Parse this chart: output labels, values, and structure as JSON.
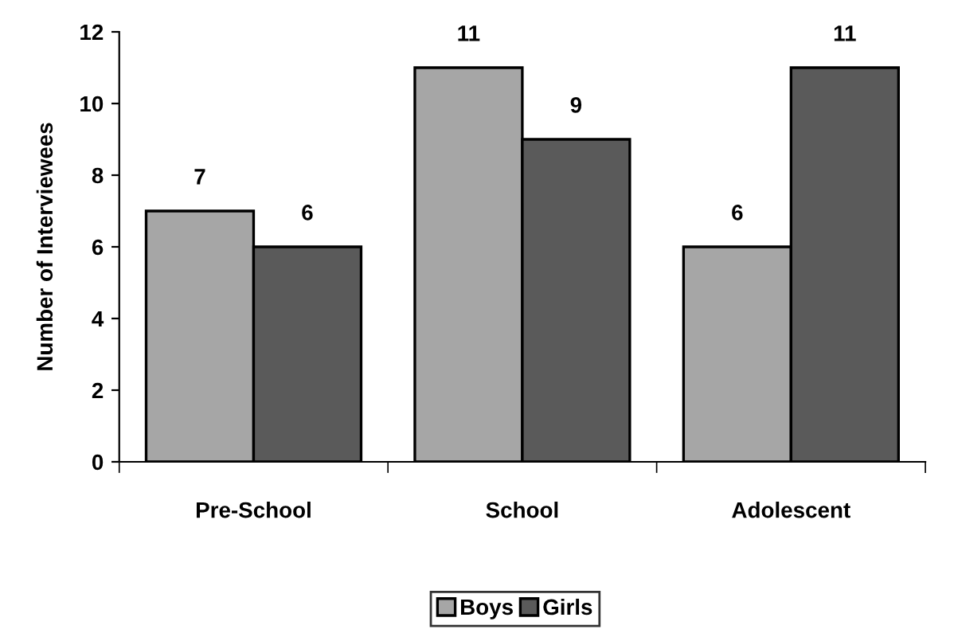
{
  "chart_data": {
    "type": "bar",
    "ylabel": "Number of Interviewees",
    "categories": [
      "Pre-School",
      "School",
      "Adolescent"
    ],
    "series": [
      {
        "name": "Boys",
        "color": "#a6a6a6",
        "values": [
          7,
          11,
          6
        ]
      },
      {
        "name": "Girls",
        "color": "#5a5a5a",
        "values": [
          6,
          9,
          11
        ]
      }
    ],
    "ylim": [
      0,
      12
    ],
    "yticks": [
      0,
      2,
      4,
      6,
      8,
      10,
      12
    ],
    "data_labels": true,
    "legend": "bottom",
    "grid": false
  }
}
